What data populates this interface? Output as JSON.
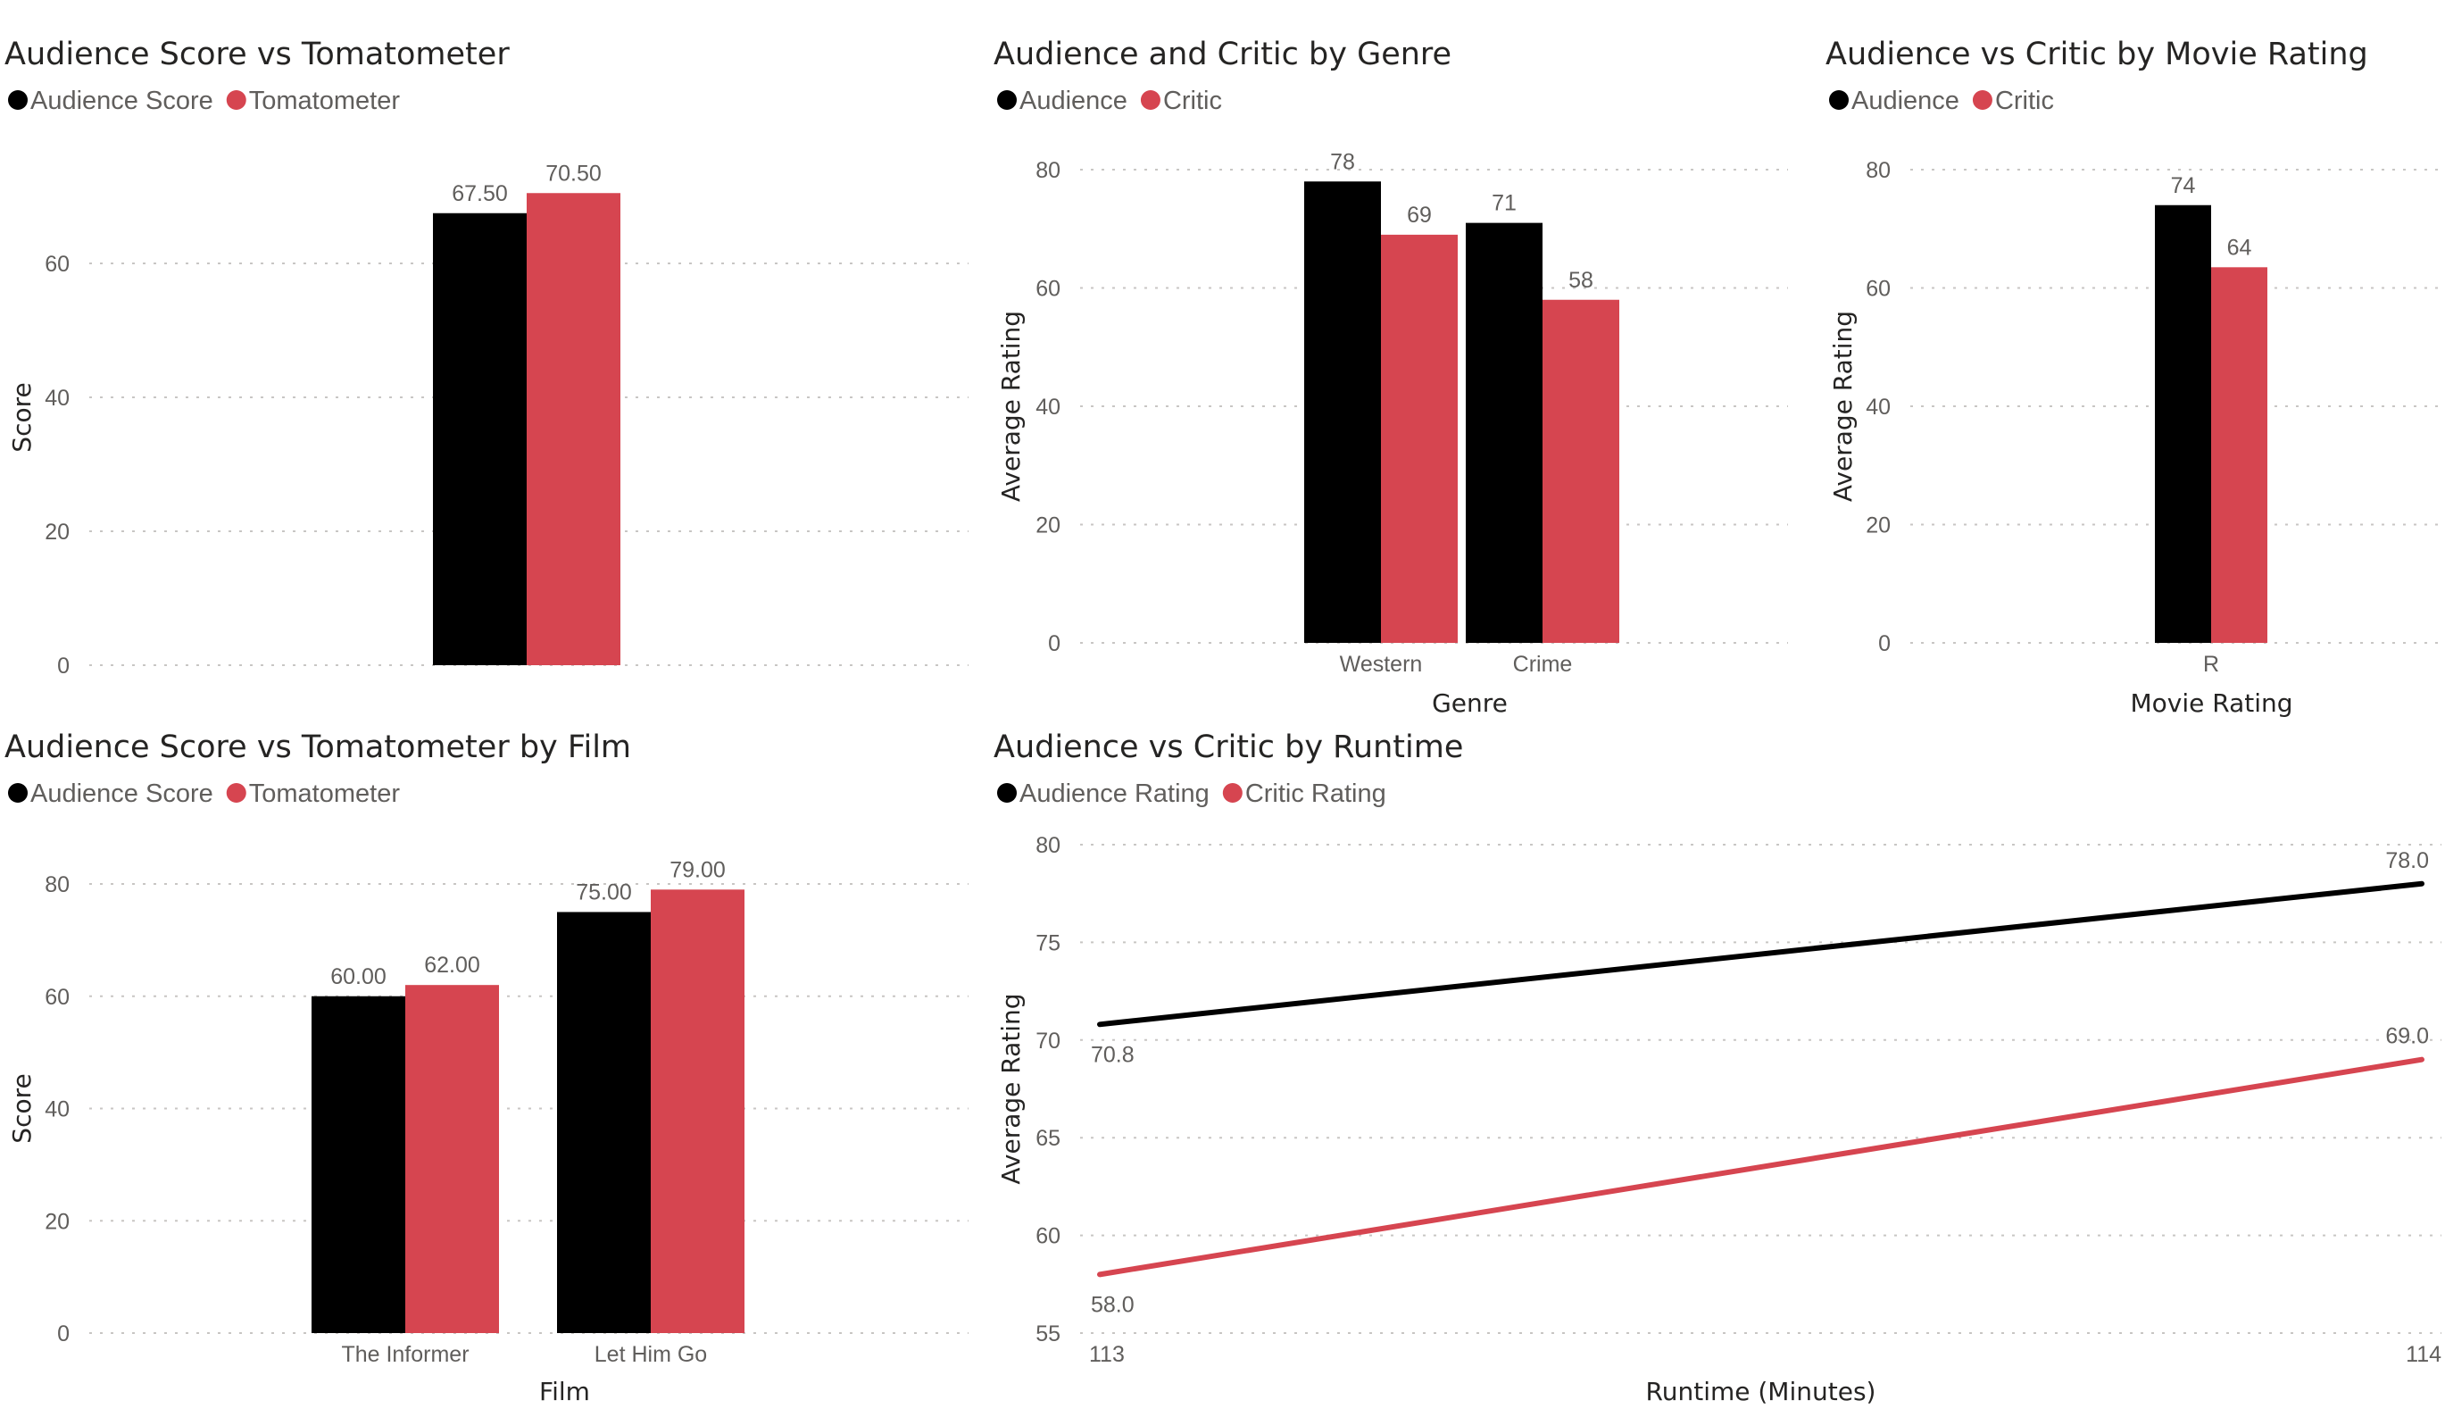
{
  "colors": {
    "series1": "#000000",
    "series2": "#d64550",
    "grid": "#c8c6c4",
    "text": "#605e5c",
    "title": "#252423"
  },
  "chart_data": [
    {
      "type": "bar",
      "title": "Audience Score vs Tomatometer",
      "legend": [
        "Audience Score",
        "Tomatometer"
      ],
      "categories": [
        ""
      ],
      "series": [
        {
          "name": "Audience Score",
          "values": [
            67.5
          ],
          "labels": [
            "67.50"
          ]
        },
        {
          "name": "Tomatometer",
          "values": [
            70.5
          ],
          "labels": [
            "70.50"
          ]
        }
      ],
      "xlabel": "",
      "ylabel": "Score",
      "ylim": [
        0,
        74
      ],
      "yticks": [
        0,
        20,
        40,
        60
      ],
      "grid": true
    },
    {
      "type": "bar",
      "title": "Audience and Critic by Genre",
      "legend": [
        "Audience",
        "Critic"
      ],
      "categories": [
        "Western",
        "Crime"
      ],
      "series": [
        {
          "name": "Audience",
          "values": [
            78,
            71
          ],
          "labels": [
            "78",
            "71"
          ]
        },
        {
          "name": "Critic",
          "values": [
            69,
            58
          ],
          "labels": [
            "69",
            "58"
          ]
        }
      ],
      "xlabel": "Genre",
      "ylabel": "Average Rating",
      "ylim": [
        0,
        80
      ],
      "yticks": [
        0,
        20,
        40,
        60,
        80
      ],
      "grid": true
    },
    {
      "type": "bar",
      "title": "Audience vs Critic by Movie Rating",
      "legend": [
        "Audience",
        "Critic"
      ],
      "categories": [
        "R"
      ],
      "series": [
        {
          "name": "Audience",
          "values": [
            74
          ],
          "labels": [
            "74"
          ]
        },
        {
          "name": "Critic",
          "values": [
            63.5
          ],
          "labels": [
            "64"
          ]
        }
      ],
      "xlabel": "Movie Rating",
      "ylabel": "Average Rating",
      "ylim": [
        0,
        80
      ],
      "yticks": [
        0,
        20,
        40,
        60,
        80
      ],
      "grid": true
    },
    {
      "type": "bar",
      "title": "Audience Score vs Tomatometer by Film",
      "legend": [
        "Audience Score",
        "Tomatometer"
      ],
      "categories": [
        "The Informer",
        "Let Him Go"
      ],
      "series": [
        {
          "name": "Audience Score",
          "values": [
            60,
            75
          ],
          "labels": [
            "60.00",
            "75.00"
          ]
        },
        {
          "name": "Tomatometer",
          "values": [
            62,
            79
          ],
          "labels": [
            "62.00",
            "79.00"
          ]
        }
      ],
      "xlabel": "Film",
      "ylabel": "Score",
      "ylim": [
        0,
        80
      ],
      "yticks": [
        0,
        20,
        40,
        60,
        80
      ],
      "grid": true
    },
    {
      "type": "line",
      "title": "Audience vs Critic by Runtime",
      "legend": [
        "Audience Rating",
        "Critic Rating"
      ],
      "x": [
        113,
        114
      ],
      "xticks": [
        "113",
        "114"
      ],
      "series": [
        {
          "name": "Audience Rating",
          "values": [
            70.8,
            78.0
          ],
          "labels": [
            "70.8",
            "78.0"
          ]
        },
        {
          "name": "Critic Rating",
          "values": [
            58.0,
            69.0
          ],
          "labels": [
            "58.0",
            "69.0"
          ]
        }
      ],
      "xlabel": "Runtime (Minutes)",
      "ylabel": "Average Rating",
      "ylim": [
        55,
        80
      ],
      "yticks": [
        55,
        60,
        65,
        70,
        75,
        80
      ],
      "grid": true
    }
  ]
}
